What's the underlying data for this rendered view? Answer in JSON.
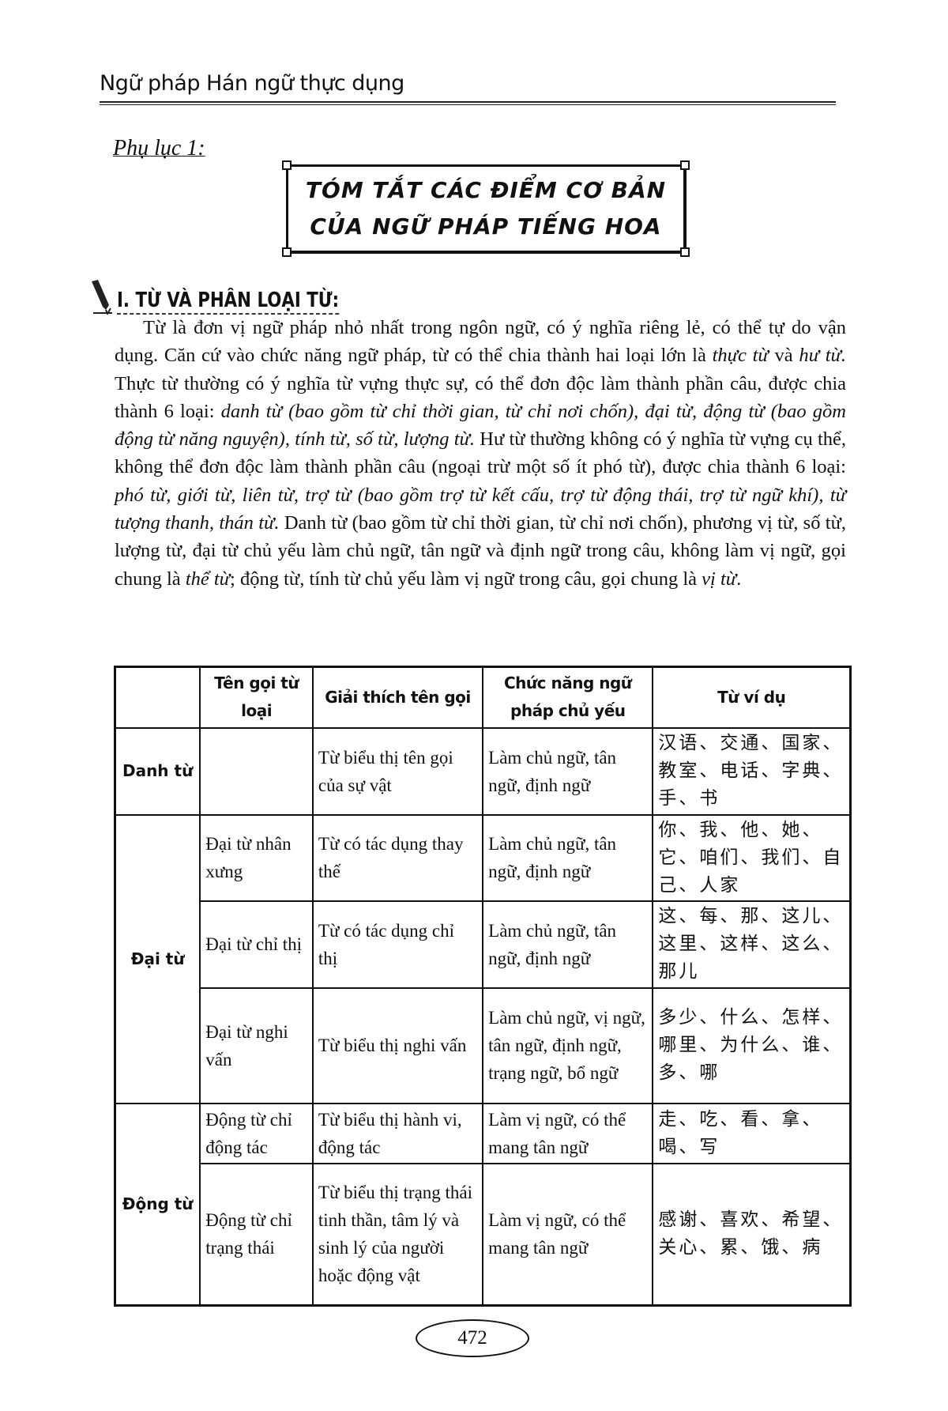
{
  "running_header": "Ngữ pháp Hán ngữ thực dụng",
  "appendix_label": "Phụ lục 1:",
  "title": {
    "line1": "TÓM TẮT CÁC ĐIỂM CƠ BẢN",
    "line2": "CỦA NGỮ PHÁP TIẾNG HOA"
  },
  "section_heading": "I. TỪ VÀ PHÂN LOẠI TỪ:",
  "section_icon": "pen-icon",
  "paragraph": [
    {
      "text": "Từ là đơn vị ngữ pháp nhỏ nhất trong ngôn ngữ, có ý nghĩa riêng lẻ, có thể tự do vận dụng. Căn cứ vào chức năng ngữ pháp, từ có thể chia thành hai loại lớn là ",
      "italic": false
    },
    {
      "text": "thực từ",
      "italic": true
    },
    {
      "text": " và ",
      "italic": false
    },
    {
      "text": "hư từ.",
      "italic": true
    },
    {
      "text": " Thực từ thường có ý nghĩa từ vựng thực sự, có thể đơn độc làm thành phần câu, được chia thành 6 loại: ",
      "italic": false
    },
    {
      "text": "danh từ (bao gồm từ chỉ thời gian, từ chỉ nơi chốn), đại từ, động từ (bao gồm động từ năng nguyện), tính từ, số từ, lượng từ.",
      "italic": true
    },
    {
      "text": " Hư từ thường không có ý nghĩa từ vựng cụ thể, không thể đơn độc làm thành phần câu (ngoại trừ một số ít phó từ), được chia thành 6 loại: ",
      "italic": false
    },
    {
      "text": "phó từ, giới từ, liên từ, trợ từ (bao gồm trợ từ kết cấu, trợ từ động thái, trợ từ ngữ khí), từ tượng thanh, thán từ.",
      "italic": true
    },
    {
      "text": " Danh từ (bao gồm từ chỉ thời gian, từ chỉ nơi chốn), phương vị từ, số từ, lượng từ, đại từ chủ yếu làm chủ ngữ, tân ngữ và định ngữ trong câu, không làm vị ngữ, gọi chung là ",
      "italic": false
    },
    {
      "text": "thể từ",
      "italic": true
    },
    {
      "text": "; động từ, tính từ chủ yếu làm vị ngữ trong câu, gọi chung là ",
      "italic": false
    },
    {
      "text": "vị từ",
      "italic": true
    },
    {
      "text": ".",
      "italic": false
    }
  ],
  "table": {
    "headers": [
      "",
      "Tên gọi từ loại",
      "Giải thích tên gọi",
      "Chức năng ngữ pháp chủ yếu",
      "Từ ví dụ"
    ],
    "groups": [
      {
        "category": "Danh từ",
        "rows": [
          {
            "subtype": "",
            "explanation": "Từ biểu thị tên gọi của sự vật",
            "function": "Làm chủ ngữ, tân ngữ, định ngữ",
            "examples": "汉语、交通、国家、教室、电话、字典、手、书"
          }
        ]
      },
      {
        "category": "Đại từ",
        "rows": [
          {
            "subtype": "Đại từ nhân xưng",
            "explanation": "Từ có tác dụng thay thế",
            "function": "Làm chủ ngữ, tân ngữ, định ngữ",
            "examples": "你、我、他、她、它、咱们、我们、自己、人家"
          },
          {
            "subtype": "Đại từ chỉ thị",
            "explanation": "Từ có tác dụng chỉ thị",
            "function": "Làm chủ ngữ, tân ngữ, định ngữ",
            "examples": "这、每、那、这儿、这里、这样、这么、那儿"
          },
          {
            "subtype": "Đại từ nghi vấn",
            "explanation": "Từ biểu thị nghi vấn",
            "function": "Làm chủ ngữ, vị ngữ, tân ngữ, định ngữ, trạng ngữ, bổ ngữ",
            "examples": "多少、什么、怎样、哪里、为什么、谁、多、哪"
          }
        ]
      },
      {
        "category": "Động từ",
        "rows": [
          {
            "subtype": "Động từ chỉ động tác",
            "explanation": "Từ biểu thị hành vi, động tác",
            "function": "Làm vị ngữ, có thể mang tân ngữ",
            "examples": "走、吃、看、拿、喝、写"
          },
          {
            "subtype": "Động từ chỉ trạng thái",
            "explanation": "Từ biểu thị trạng thái tinh thần, tâm lý và sinh lý của người hoặc động vật",
            "function": "Làm vị ngữ, có thể mang tân ngữ",
            "examples": "感谢、喜欢、希望、关心、累、饿、病"
          }
        ]
      }
    ]
  },
  "page_number": "472"
}
